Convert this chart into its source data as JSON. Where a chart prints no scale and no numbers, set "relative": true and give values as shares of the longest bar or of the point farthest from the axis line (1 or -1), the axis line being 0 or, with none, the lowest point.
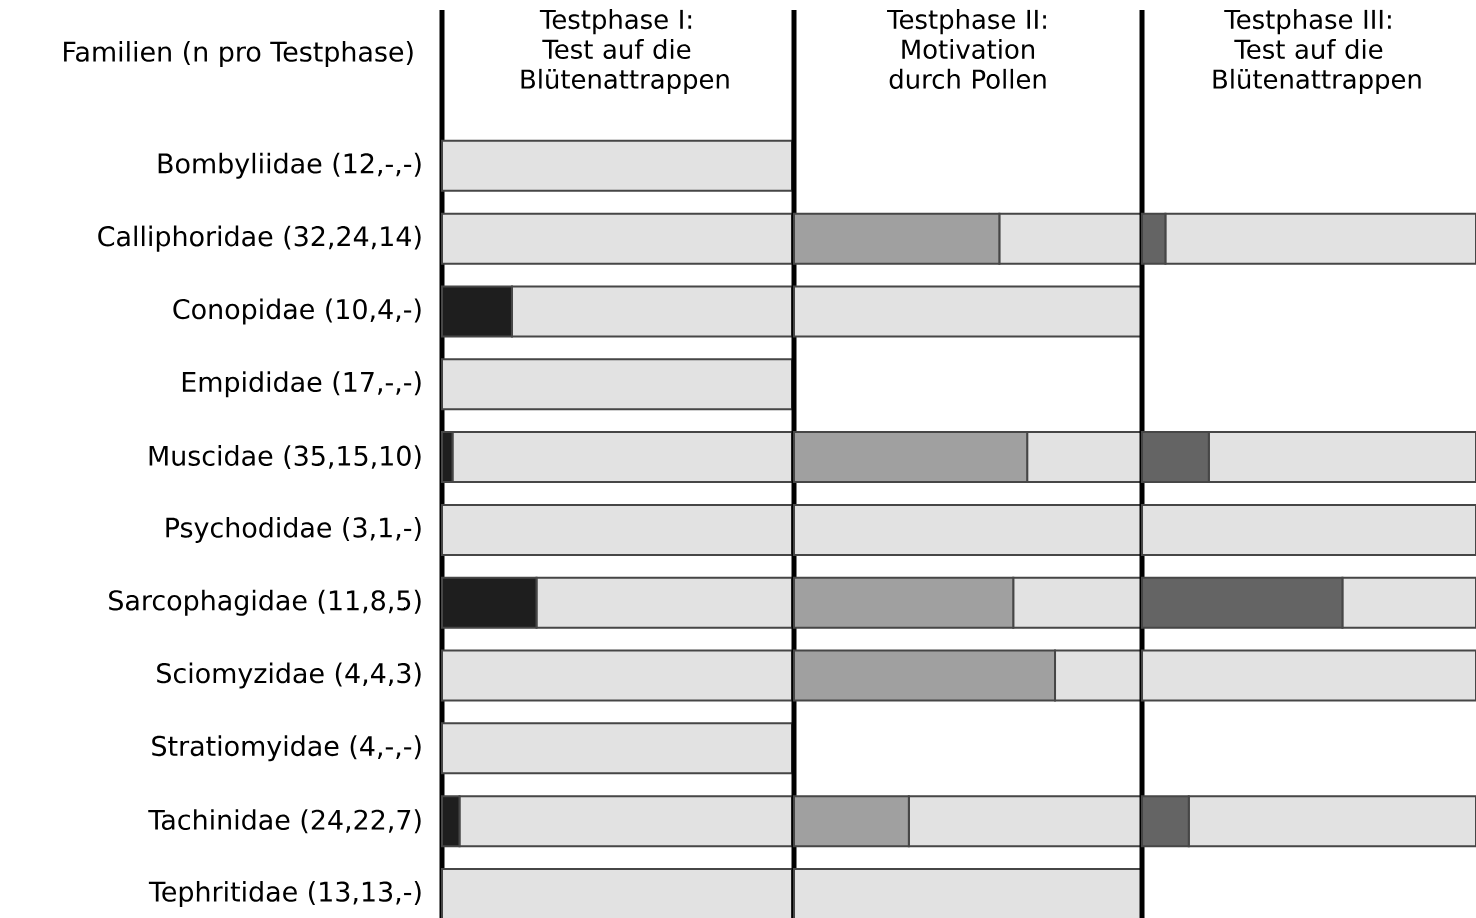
{
  "chart_data": [
    {
      "type": "bar",
      "orientation": "horizontal",
      "stacked": true,
      "relative": true,
      "tick_labels": "y",
      "title": "Testphase I: Test auf die Blütenattrappen",
      "ylabel": "Familien (n pro Testphase)",
      "categories": [
        "Bombyliidae (12,-,-)",
        "Calliphoridae (32,24,14)",
        "Conopidae (10,4,-)",
        "Empididae (17,-,-)",
        "Muscidae (35,15,10)",
        "Psychodidae (3,1,-)",
        "Sarcophagidae (11,8,5)",
        "Sciomyzidae (4,4,3)",
        "Stratiomyidae (4,-,-)",
        "Tachinidae (24,22,7)",
        "Tephritidae (13,13,-)"
      ],
      "series": [
        {
          "color": "#1e1e1e",
          "values": [
            0,
            0,
            0.2,
            0,
            0.03,
            0,
            0.27,
            0,
            0,
            0.05,
            0
          ]
        },
        {
          "color": "#e2e2e2",
          "values": [
            1,
            1,
            0.8,
            1,
            0.97,
            1,
            0.73,
            1,
            1,
            0.95,
            1
          ]
        }
      ]
    },
    {
      "type": "bar",
      "orientation": "horizontal",
      "stacked": true,
      "relative": true,
      "tick_labels": false,
      "title": "Testphase II: Motivation durch Pollen",
      "categories": [
        null,
        null,
        null,
        null,
        null,
        null,
        null,
        null,
        null,
        null,
        null
      ],
      "series": [
        {
          "color": "#a0a0a0",
          "values": [
            null,
            0.59,
            0,
            null,
            0.67,
            0,
            0.63,
            0.75,
            null,
            0.33,
            0
          ]
        },
        {
          "color": "#e2e2e2",
          "values": [
            null,
            0.41,
            1,
            null,
            0.33,
            1,
            0.37,
            0.25,
            null,
            0.67,
            1
          ]
        }
      ]
    },
    {
      "type": "bar",
      "orientation": "horizontal",
      "stacked": true,
      "relative": true,
      "tick_labels": false,
      "title": "Testphase III: Test auf die Blütenattrappen",
      "categories": [
        null,
        null,
        null,
        null,
        null,
        null,
        null,
        null,
        null,
        null,
        null
      ],
      "series": [
        {
          "color": "#646464",
          "values": [
            null,
            0.07,
            null,
            null,
            0.2,
            0,
            0.6,
            0,
            null,
            0.14,
            null
          ]
        },
        {
          "color": "#e2e2e2",
          "values": [
            null,
            0.93,
            null,
            null,
            0.8,
            1,
            0.4,
            1,
            null,
            0.86,
            null
          ]
        }
      ]
    }
  ]
}
